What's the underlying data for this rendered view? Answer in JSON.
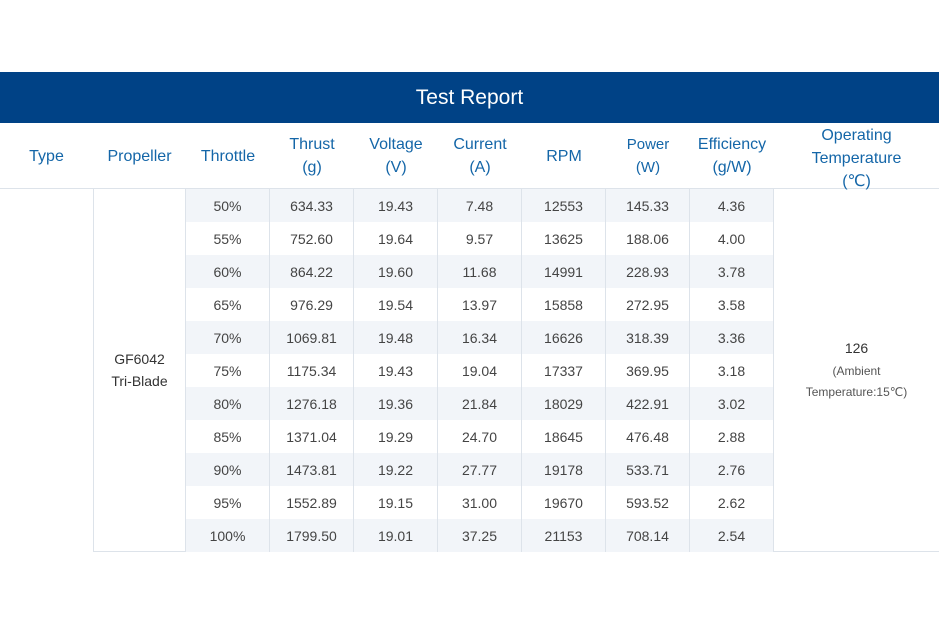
{
  "title": "Test Report",
  "headers": {
    "type": [
      "Type"
    ],
    "propeller": [
      "Propeller"
    ],
    "throttle": [
      "Throttle"
    ],
    "thrust": [
      "Thrust",
      "(g)"
    ],
    "voltage": [
      "Voltage",
      "(V)"
    ],
    "current": [
      "Current",
      "(A)"
    ],
    "rpm": [
      "RPM"
    ],
    "power": [
      "Power",
      "(W)"
    ],
    "efficiency": [
      "Efficiency",
      "(g/W)"
    ],
    "operating": [
      "Operating",
      "Temperature",
      "(℃)"
    ]
  },
  "propeller": [
    "GF6042",
    "Tri-Blade"
  ],
  "rows": [
    [
      "50%",
      "634.33",
      "19.43",
      "7.48",
      "12553",
      "145.33",
      "4.36"
    ],
    [
      "55%",
      "752.60",
      "19.64",
      "9.57",
      "13625",
      "188.06",
      "4.00"
    ],
    [
      "60%",
      "864.22",
      "19.60",
      "11.68",
      "14991",
      "228.93",
      "3.78"
    ],
    [
      "65%",
      "976.29",
      "19.54",
      "13.97",
      "15858",
      "272.95",
      "3.58"
    ],
    [
      "70%",
      "1069.81",
      "19.48",
      "16.34",
      "16626",
      "318.39",
      "3.36"
    ],
    [
      "75%",
      "1175.34",
      "19.43",
      "19.04",
      "17337",
      "369.95",
      "3.18"
    ],
    [
      "80%",
      "1276.18",
      "19.36",
      "21.84",
      "18029",
      "422.91",
      "3.02"
    ],
    [
      "85%",
      "1371.04",
      "19.29",
      "24.70",
      "18645",
      "476.48",
      "2.88"
    ],
    [
      "90%",
      "1473.81",
      "19.22",
      "27.77",
      "19178",
      "533.71",
      "2.76"
    ],
    [
      "95%",
      "1552.89",
      "19.15",
      "31.00",
      "19670",
      "593.52",
      "2.62"
    ],
    [
      "100%",
      "1799.50",
      "19.01",
      "37.25",
      "21153",
      "708.14",
      "2.54"
    ]
  ],
  "operating": {
    "value": "126",
    "note": [
      "(Ambient",
      "Temperature:15℃)"
    ]
  },
  "colors": {
    "title_bg": "#004286",
    "header_text": "#1466a8",
    "row_alt": "#f2f5f9",
    "border": "#dde3ea"
  }
}
